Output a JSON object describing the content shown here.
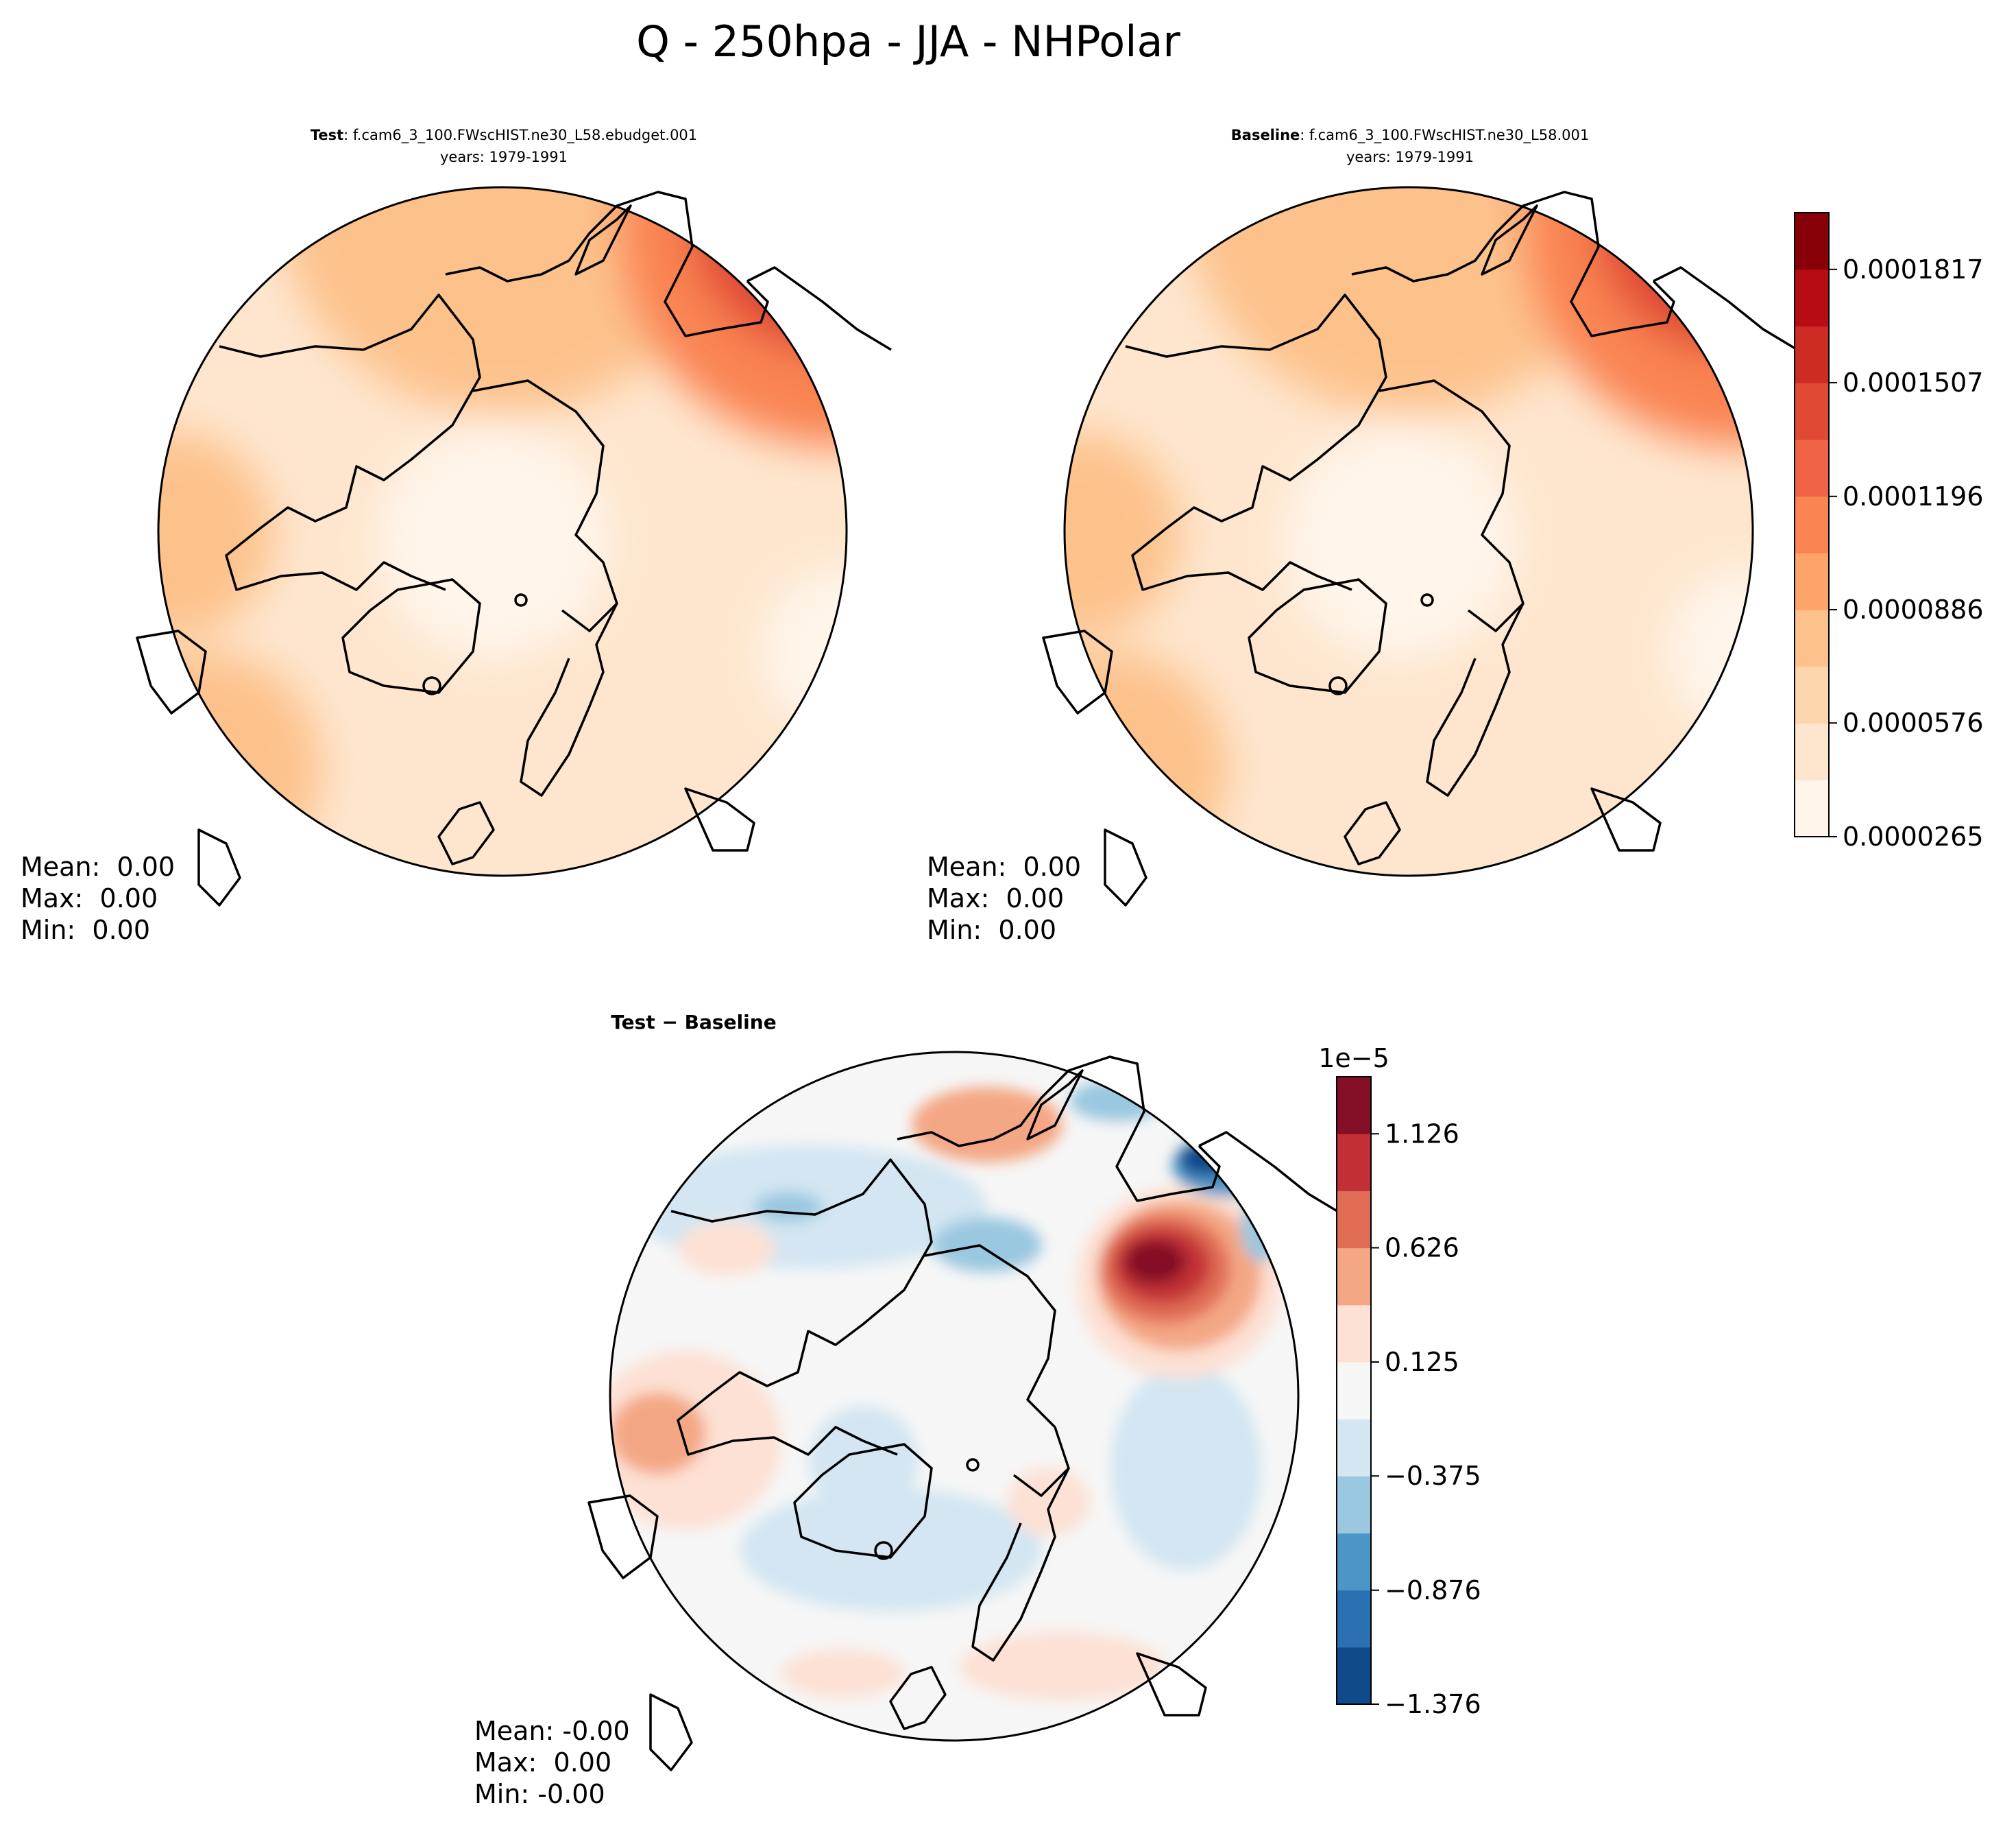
{
  "figure": {
    "suptitle": "Q - 250hpa - JJA - NHPolar"
  },
  "panels": {
    "test": {
      "title_bold": "Test",
      "title_rest": ": f.cam6_3_100.FWscHIST.ne30_L58.ebudget.001",
      "subtitle": "years: 1979-1991",
      "stats": {
        "mean": "Mean:  0.00",
        "max": "Max:  0.00",
        "min": "Min:  0.00"
      }
    },
    "baseline": {
      "title_bold": "Baseline",
      "title_rest": ": f.cam6_3_100.FWscHIST.ne30_L58.001",
      "subtitle": "years: 1979-1991",
      "stats": {
        "mean": "Mean:  0.00",
        "max": "Max:  0.00",
        "min": "Min:  0.00"
      }
    },
    "diff": {
      "title": "Test − Baseline",
      "stats": {
        "mean": "Mean: -0.00",
        "max": "Max:  0.00",
        "min": "Min: -0.00"
      }
    }
  },
  "colors": {
    "reds": [
      "#fff5eb",
      "#fee6ce",
      "#fdd6ad",
      "#fdc28c",
      "#fda46b",
      "#fa8452",
      "#f06445",
      "#e04a35",
      "#cd2b24",
      "#b80c14",
      "#880008"
    ],
    "rdbu": [
      "#0f4a8a",
      "#2a70b2",
      "#4d95c6",
      "#9ac8e0",
      "#d3e6f2",
      "#f6f6f6",
      "#fde1d4",
      "#f4a784",
      "#e06c55",
      "#c23035",
      "#850f27"
    ],
    "land_line": "#000000"
  },
  "chart_data": [
    {
      "type": "heatmap",
      "name": "test",
      "title": "Test : f.cam6_3_100.FWscHIST.ne30_L58.ebudget.001",
      "subtitle": "years: 1979-1991",
      "projection": "North polar stereographic",
      "variable": "Q",
      "level": "250hpa",
      "season": "JJA",
      "colorbar": "shared",
      "stats": {
        "mean": 0.0,
        "max": 0.0,
        "min": 0.0
      }
    },
    {
      "type": "heatmap",
      "name": "baseline",
      "title": "Baseline : f.cam6_3_100.FWscHIST.ne30_L58.001",
      "subtitle": "years: 1979-1991",
      "projection": "North polar stereographic",
      "colorbar": {
        "ticks": [
          2.65e-05,
          5.76e-05,
          8.86e-05,
          0.0001196,
          0.0001507,
          0.0001817
        ],
        "tick_labels": [
          "0.0000265",
          "0.0000576",
          "0.0000886",
          "0.0001196",
          "0.0001507",
          "0.0001817"
        ],
        "levels": 11,
        "colormap": "Reds"
      },
      "stats": {
        "mean": 0.0,
        "max": 0.0,
        "min": 0.0
      }
    },
    {
      "type": "heatmap",
      "name": "difference",
      "title": "Test − Baseline",
      "projection": "North polar stereographic",
      "colorbar": {
        "offset_label": "1e−5",
        "ticks": [
          -1.376,
          -0.876,
          -0.375,
          0.125,
          0.626,
          1.126
        ],
        "tick_labels": [
          "−1.376",
          "−0.876",
          "−0.375",
          "0.125",
          "0.626",
          "1.126"
        ],
        "levels": 11,
        "colormap": "RdBu_r"
      },
      "stats": {
        "mean": -0.0,
        "max": 0.0,
        "min": -0.0
      }
    }
  ]
}
